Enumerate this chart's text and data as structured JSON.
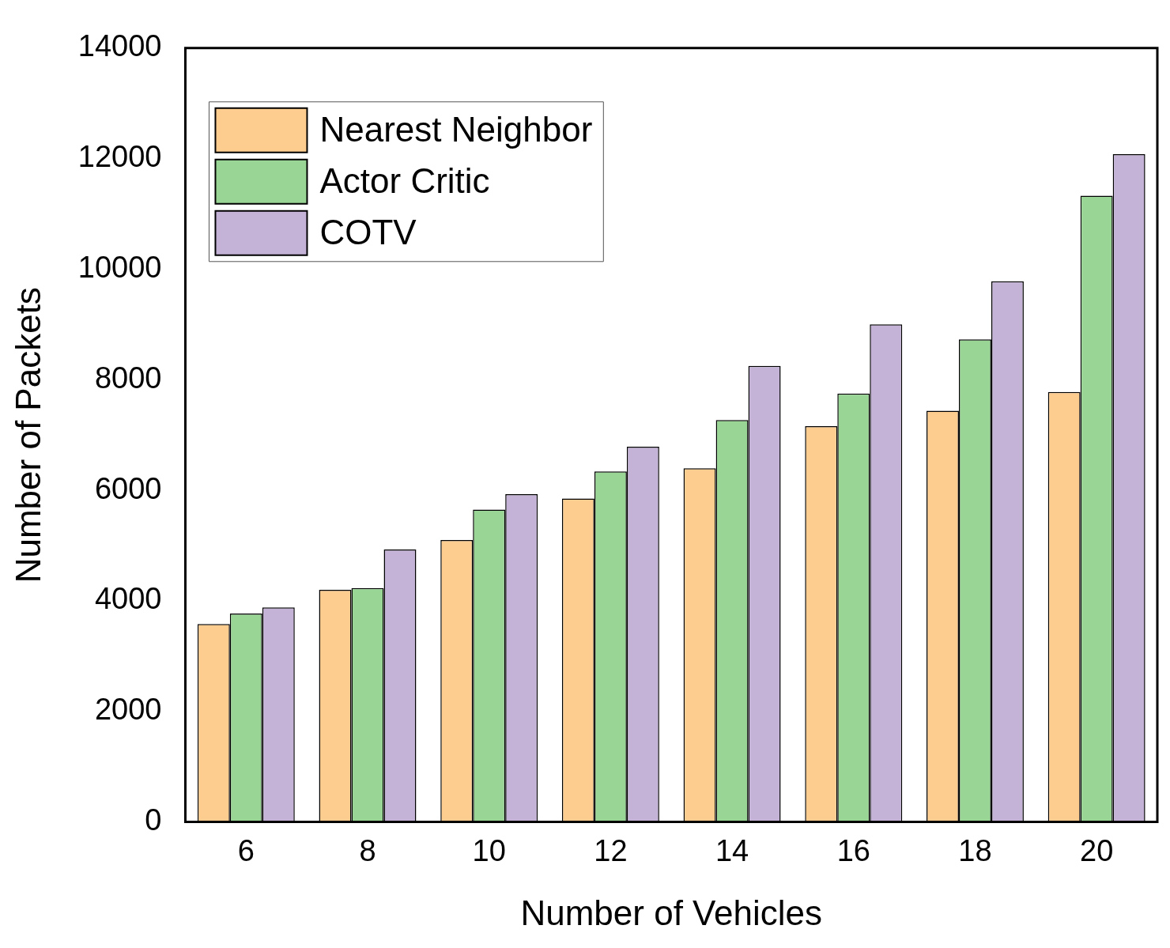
{
  "chart_data": {
    "type": "bar",
    "xlabel": "Number of Vehicles",
    "ylabel": "Number of Packets",
    "categories": [
      "6",
      "8",
      "10",
      "12",
      "14",
      "16",
      "18",
      "20"
    ],
    "series": [
      {
        "name": "Nearest Neighbor",
        "color": "#fdcd90",
        "values": [
          3580,
          4200,
          5100,
          5850,
          6400,
          7160,
          7440,
          7780
        ]
      },
      {
        "name": "Actor Critic",
        "color": "#99d595",
        "values": [
          3770,
          4230,
          5650,
          6340,
          7270,
          7750,
          8730,
          11330
        ]
      },
      {
        "name": "COTV",
        "color": "#c5b3d7",
        "values": [
          3880,
          4930,
          5930,
          6790,
          8250,
          9000,
          9780,
          12080
        ]
      }
    ],
    "ylim": [
      0,
      14000
    ],
    "yticks": [
      0,
      2000,
      4000,
      6000,
      8000,
      10000,
      12000,
      14000
    ],
    "grid": false,
    "legend": "top left"
  }
}
